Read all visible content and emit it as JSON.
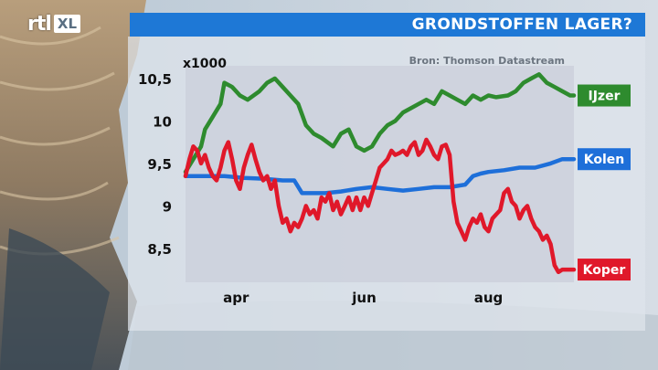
{
  "header": {
    "logo_text": "rtl",
    "logo_badge": "XL",
    "title": "GRONDSTOFFEN LAGER?"
  },
  "colors": {
    "title_bar": "#1e78d6",
    "ijzer": "#2e8b2e",
    "kolen": "#1e6fd9",
    "koper": "#e0182a",
    "plot_bg": "#cdd1dd"
  },
  "chart_data": {
    "type": "line",
    "title": "GRONDSTOFFEN LAGER?",
    "source": "Bron: Thomson Datastream",
    "unit_label": "x1000",
    "ylim": [
      8.1,
      10.65
    ],
    "yticks": [
      "10,5",
      "10",
      "9,5",
      "9",
      "8,5"
    ],
    "ytick_values": [
      10.5,
      10.0,
      9.5,
      9.0,
      8.5
    ],
    "xlim": [
      0,
      100
    ],
    "xticks": [
      "apr",
      "jun",
      "aug"
    ],
    "xtick_values": [
      13,
      46,
      78
    ],
    "grid": false,
    "series": [
      {
        "name": "IJzer",
        "color": "#2e8b2e",
        "x": [
          0,
          2,
          4,
          5,
          7,
          9,
          10,
          12,
          14,
          16,
          19,
          21,
          23,
          25,
          27,
          29,
          31,
          33,
          35,
          38,
          40,
          42,
          44,
          46,
          48,
          50,
          52,
          54,
          56,
          58,
          60,
          62,
          64,
          66,
          68,
          70,
          72,
          74,
          76,
          78,
          80,
          83,
          85,
          87,
          89,
          91,
          93,
          95,
          97,
          99,
          100
        ],
        "values": [
          9.4,
          9.55,
          9.7,
          9.9,
          10.05,
          10.2,
          10.45,
          10.4,
          10.3,
          10.25,
          10.35,
          10.45,
          10.5,
          10.4,
          10.3,
          10.2,
          9.95,
          9.85,
          9.8,
          9.7,
          9.85,
          9.9,
          9.7,
          9.65,
          9.7,
          9.85,
          9.95,
          10.0,
          10.1,
          10.15,
          10.2,
          10.25,
          10.2,
          10.35,
          10.3,
          10.25,
          10.2,
          10.3,
          10.25,
          10.3,
          10.28,
          10.3,
          10.35,
          10.45,
          10.5,
          10.55,
          10.45,
          10.4,
          10.35,
          10.3,
          10.3
        ]
      },
      {
        "name": "Kolen",
        "color": "#1e6fd9",
        "x": [
          0,
          5,
          10,
          15,
          20,
          25,
          28,
          30,
          33,
          36,
          40,
          44,
          48,
          52,
          56,
          60,
          64,
          68,
          72,
          74,
          76,
          78,
          82,
          86,
          90,
          94,
          97,
          100
        ],
        "values": [
          9.35,
          9.35,
          9.35,
          9.33,
          9.32,
          9.3,
          9.3,
          9.15,
          9.15,
          9.15,
          9.17,
          9.2,
          9.22,
          9.2,
          9.18,
          9.2,
          9.22,
          9.22,
          9.25,
          9.35,
          9.38,
          9.4,
          9.42,
          9.45,
          9.45,
          9.5,
          9.55,
          9.55
        ]
      },
      {
        "name": "Koper",
        "color": "#e0182a",
        "x": [
          0,
          1,
          2,
          3,
          4,
          5,
          6,
          7,
          8,
          9,
          10,
          11,
          12,
          13,
          14,
          15,
          16,
          17,
          18,
          19,
          20,
          21,
          22,
          23,
          24,
          25,
          26,
          27,
          28,
          29,
          30,
          31,
          32,
          33,
          34,
          35,
          36,
          37,
          38,
          39,
          40,
          41,
          42,
          43,
          44,
          45,
          46,
          47,
          48,
          49,
          50,
          51,
          52,
          53,
          54,
          55,
          56,
          57,
          58,
          59,
          60,
          61,
          62,
          63,
          64,
          65,
          66,
          67,
          68,
          69,
          70,
          71,
          72,
          73,
          74,
          75,
          76,
          77,
          78,
          79,
          80,
          81,
          82,
          83,
          84,
          85,
          86,
          87,
          88,
          89,
          90,
          91,
          92,
          93,
          94,
          95,
          96,
          97,
          98,
          99,
          100
        ],
        "values": [
          9.35,
          9.55,
          9.7,
          9.65,
          9.5,
          9.6,
          9.45,
          9.35,
          9.3,
          9.45,
          9.65,
          9.75,
          9.55,
          9.3,
          9.2,
          9.45,
          9.6,
          9.72,
          9.55,
          9.4,
          9.3,
          9.35,
          9.2,
          9.3,
          9.0,
          8.8,
          8.85,
          8.7,
          8.8,
          8.75,
          8.85,
          9.0,
          8.9,
          8.95,
          8.85,
          9.1,
          9.05,
          9.15,
          8.95,
          9.05,
          8.9,
          9.0,
          9.1,
          8.95,
          9.1,
          8.95,
          9.1,
          9.0,
          9.15,
          9.3,
          9.45,
          9.5,
          9.55,
          9.65,
          9.6,
          9.62,
          9.65,
          9.6,
          9.7,
          9.75,
          9.6,
          9.65,
          9.78,
          9.7,
          9.6,
          9.55,
          9.7,
          9.72,
          9.6,
          9.05,
          8.8,
          8.7,
          8.6,
          8.75,
          8.85,
          8.8,
          8.9,
          8.75,
          8.7,
          8.85,
          8.9,
          8.95,
          9.15,
          9.2,
          9.05,
          9.0,
          8.85,
          8.95,
          9.0,
          8.85,
          8.75,
          8.7,
          8.6,
          8.65,
          8.55,
          8.3,
          8.22,
          8.25,
          8.25,
          8.25,
          8.25
        ]
      }
    ]
  }
}
